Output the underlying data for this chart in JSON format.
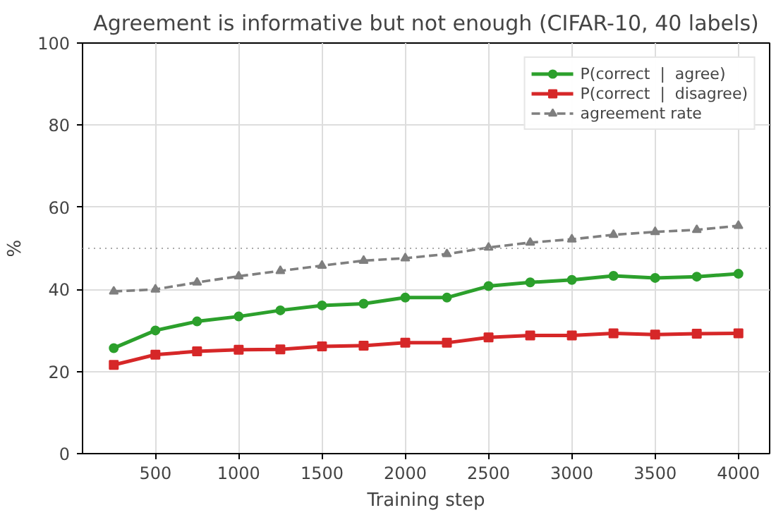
{
  "chart_data": {
    "type": "line",
    "title": "Agreement is informative but not enough (CIFAR-10, 40 labels)",
    "xlabel": "Training step",
    "ylabel": "%",
    "x": [
      250,
      500,
      750,
      1000,
      1250,
      1500,
      1750,
      2000,
      2250,
      2500,
      2750,
      3000,
      3250,
      3500,
      3750,
      4000
    ],
    "series": [
      {
        "name": "P(correct  |  agree)",
        "color": "#2ca02c",
        "marker": "circle",
        "line_style": "solid",
        "values": [
          25.7,
          30,
          32.2,
          33.4,
          34.9,
          36.1,
          36.5,
          38,
          38,
          40.8,
          41.7,
          42.3,
          43.3,
          42.8,
          43.1,
          43.8
        ]
      },
      {
        "name": "P(correct  |  disagree)",
        "color": "#d62728",
        "marker": "square",
        "line_style": "solid",
        "values": [
          21.6,
          24.1,
          24.9,
          25.3,
          25.4,
          26.1,
          26.3,
          27,
          27,
          28.3,
          28.8,
          28.8,
          29.3,
          29.0,
          29.2,
          29.3
        ]
      },
      {
        "name": "agreement rate",
        "color": "#7f7f7f",
        "marker": "triangle",
        "line_style": "dashed",
        "values": [
          39.5,
          40,
          41.7,
          43.2,
          44.5,
          45.8,
          47,
          47.6,
          48.6,
          50.2,
          51.4,
          52.2,
          53.3,
          54,
          54.5,
          55.5
        ]
      }
    ],
    "xlim": [
      62.5,
      4187.5
    ],
    "xticks": [
      500,
      1000,
      1500,
      2000,
      2500,
      3000,
      3500,
      4000
    ],
    "ylim": [
      0,
      100
    ],
    "yticks": [
      0,
      20,
      40,
      60,
      80,
      100
    ],
    "ref_lines": [
      {
        "axis": "y",
        "value": 50,
        "label": null,
        "color": "#aaaaaa",
        "line_style": "dotted"
      }
    ],
    "grid": true,
    "legend": "top right"
  }
}
